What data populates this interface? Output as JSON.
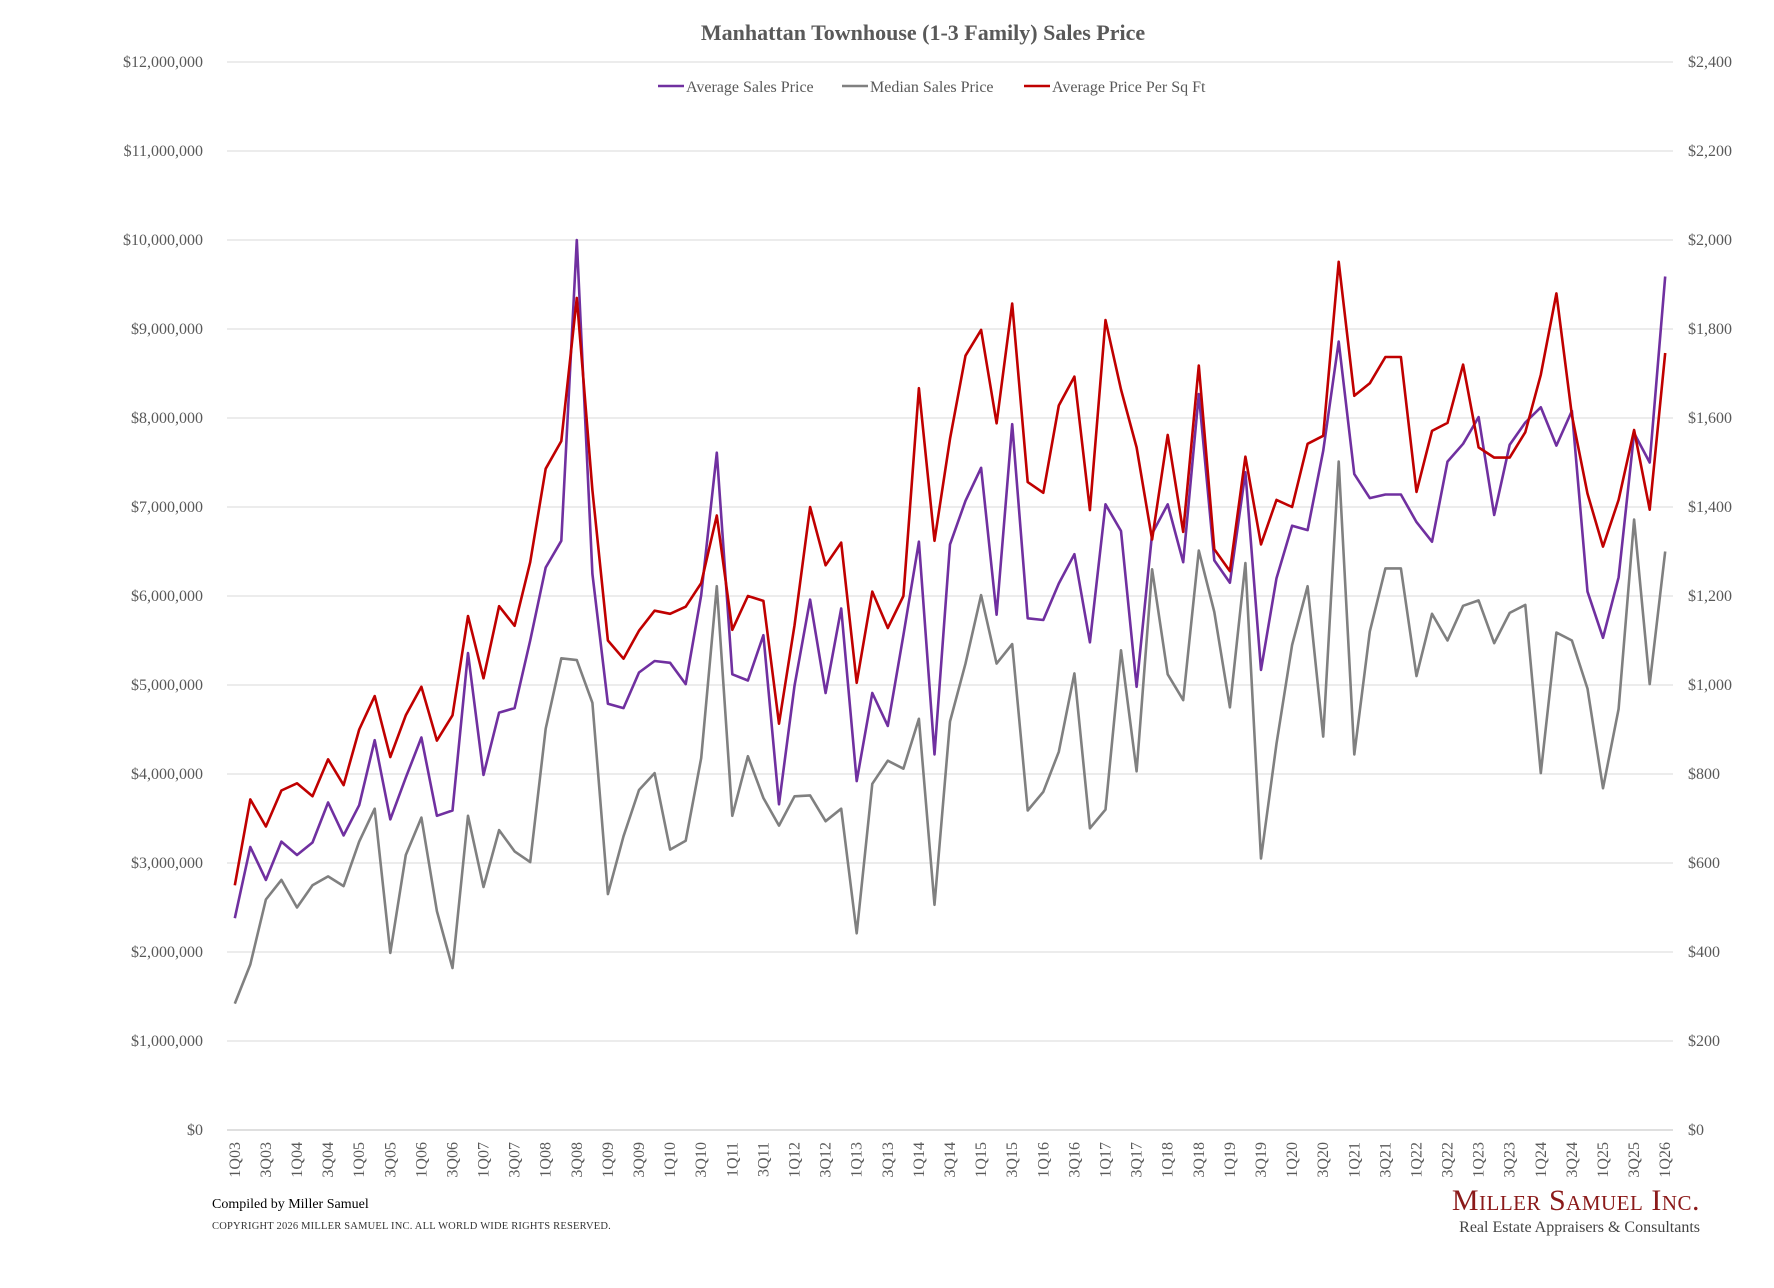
{
  "colors": {
    "avg": "#7030a0",
    "median": "#808080",
    "ppsf": "#c00000",
    "grid": "#d9d9d9"
  },
  "footer": {
    "compiled": "Compiled by Miller Samuel",
    "copyright": "COPYRIGHT 2026 MILLER SAMUEL INC.  ALL WORLD WIDE RIGHTS RESERVED.",
    "logo_main": "Miller Samuel Inc.",
    "logo_sub": "Real Estate Appraisers & Consultants"
  },
  "chart_data": {
    "type": "line",
    "title": "Manhattan Townhouse (1-3 Family) Sales Price",
    "legend_position": "top-center",
    "grid": true,
    "y_left": {
      "min": 0,
      "max": 12000000,
      "step": 1000000,
      "tick_labels": [
        "$0",
        "$1,000,000",
        "$2,000,000",
        "$3,000,000",
        "$4,000,000",
        "$5,000,000",
        "$6,000,000",
        "$7,000,000",
        "$8,000,000",
        "$9,000,000",
        "$10,000,000",
        "$11,000,000",
        "$12,000,000"
      ]
    },
    "y_right": {
      "min": 0,
      "max": 2400,
      "step": 200,
      "tick_labels": [
        "$0",
        "$200",
        "$400",
        "$600",
        "$800",
        "$1,000",
        "$1,200",
        "$1,400",
        "$1,600",
        "$1,800",
        "$2,000",
        "$2,200",
        "$2,400"
      ]
    },
    "x_tick_labels": [
      "1Q03",
      "3Q03",
      "1Q04",
      "3Q04",
      "1Q05",
      "3Q05",
      "1Q06",
      "3Q06",
      "1Q07",
      "3Q07",
      "1Q08",
      "3Q08",
      "1Q09",
      "3Q09",
      "1Q10",
      "3Q10",
      "1Q11",
      "3Q11",
      "1Q12",
      "3Q12",
      "1Q13",
      "3Q13",
      "1Q14",
      "3Q14",
      "1Q15",
      "3Q15",
      "1Q16",
      "3Q16",
      "1Q17",
      "3Q17",
      "1Q18",
      "3Q18",
      "1Q19",
      "3Q19",
      "1Q20",
      "3Q20",
      "1Q21",
      "3Q21",
      "1Q22",
      "3Q22",
      "1Q23",
      "3Q23",
      "1Q24",
      "3Q24",
      "1Q25",
      "3Q25",
      "1Q26"
    ],
    "x_count": 93,
    "series": [
      {
        "name": "Average Sales Price",
        "axis": "left",
        "values": [
          2380000,
          3180000,
          2810000,
          3240000,
          3090000,
          3230000,
          3680000,
          3310000,
          3650000,
          4380000,
          3490000,
          3960000,
          4410000,
          3530000,
          3590000,
          5360000,
          3990000,
          4690000,
          4740000,
          5500000,
          6320000,
          6620000,
          10000000,
          6250000,
          4790000,
          4740000,
          5140000,
          5270000,
          5250000,
          5010000,
          6010000,
          7610000,
          5120000,
          5050000,
          5560000,
          3660000,
          4990000,
          5960000,
          4910000,
          5860000,
          3920000,
          4910000,
          4540000,
          5560000,
          6610000,
          4220000,
          6580000,
          7070000,
          7440000,
          5790000,
          7930000,
          5750000,
          5730000,
          6140000,
          6470000,
          5480000,
          7030000,
          6730000,
          4980000,
          6700000,
          7030000,
          6380000,
          8270000,
          6400000,
          6150000,
          7390000,
          5170000,
          6200000,
          6790000,
          6740000,
          7630000,
          8860000,
          7370000,
          7100000,
          7140000,
          7140000,
          6830000,
          6610000,
          7510000,
          7710000,
          8010000,
          6910000,
          7700000,
          7950000,
          8120000,
          7690000,
          8080000,
          6050000,
          5530000,
          6210000,
          7830000,
          7500000,
          9590000
        ]
      },
      {
        "name": "Median Sales Price",
        "axis": "left",
        "values": [
          1420000,
          1860000,
          2590000,
          2810000,
          2500000,
          2750000,
          2850000,
          2740000,
          3240000,
          3610000,
          1990000,
          3090000,
          3510000,
          2460000,
          1820000,
          3530000,
          2730000,
          3370000,
          3130000,
          3010000,
          4510000,
          5300000,
          5280000,
          4800000,
          2650000,
          3300000,
          3820000,
          4010000,
          3150000,
          3250000,
          4180000,
          6110000,
          3530000,
          4200000,
          3730000,
          3420000,
          3750000,
          3760000,
          3470000,
          3610000,
          2210000,
          3890000,
          4150000,
          4060000,
          4620000,
          2530000,
          4590000,
          5240000,
          6010000,
          5240000,
          5460000,
          3590000,
          3800000,
          4250000,
          5130000,
          3390000,
          3600000,
          5390000,
          4030000,
          6300000,
          5120000,
          4830000,
          6510000,
          5820000,
          4750000,
          6370000,
          3050000,
          4340000,
          5450000,
          6110000,
          4420000,
          7510000,
          4220000,
          5600000,
          6310000,
          6310000,
          5100000,
          5800000,
          5500000,
          5890000,
          5950000,
          5470000,
          5810000,
          5900000,
          4010000,
          5590000,
          5500000,
          4960000,
          3840000,
          4730000,
          6860000,
          5010000,
          6500000
        ]
      },
      {
        "name": "Average Price Per Sq Ft",
        "axis": "right",
        "values": [
          550,
          743,
          682,
          763,
          779,
          750,
          833,
          775,
          900,
          975,
          838,
          932,
          996,
          875,
          932,
          1155,
          1015,
          1177,
          1133,
          1276,
          1486,
          1548,
          1870,
          1438,
          1100,
          1059,
          1122,
          1167,
          1160,
          1176,
          1229,
          1381,
          1124,
          1200,
          1189,
          913,
          1134,
          1400,
          1269,
          1320,
          1005,
          1210,
          1128,
          1200,
          1667,
          1324,
          1553,
          1740,
          1798,
          1588,
          1857,
          1456,
          1432,
          1628,
          1693,
          1393,
          1820,
          1664,
          1534,
          1327,
          1562,
          1344,
          1718,
          1305,
          1256,
          1513,
          1316,
          1416,
          1400,
          1542,
          1560,
          1951,
          1650,
          1678,
          1737,
          1737,
          1434,
          1571,
          1589,
          1720,
          1534,
          1511,
          1511,
          1568,
          1697,
          1880,
          1606,
          1430,
          1311,
          1416,
          1573,
          1394,
          1746
        ]
      }
    ]
  }
}
